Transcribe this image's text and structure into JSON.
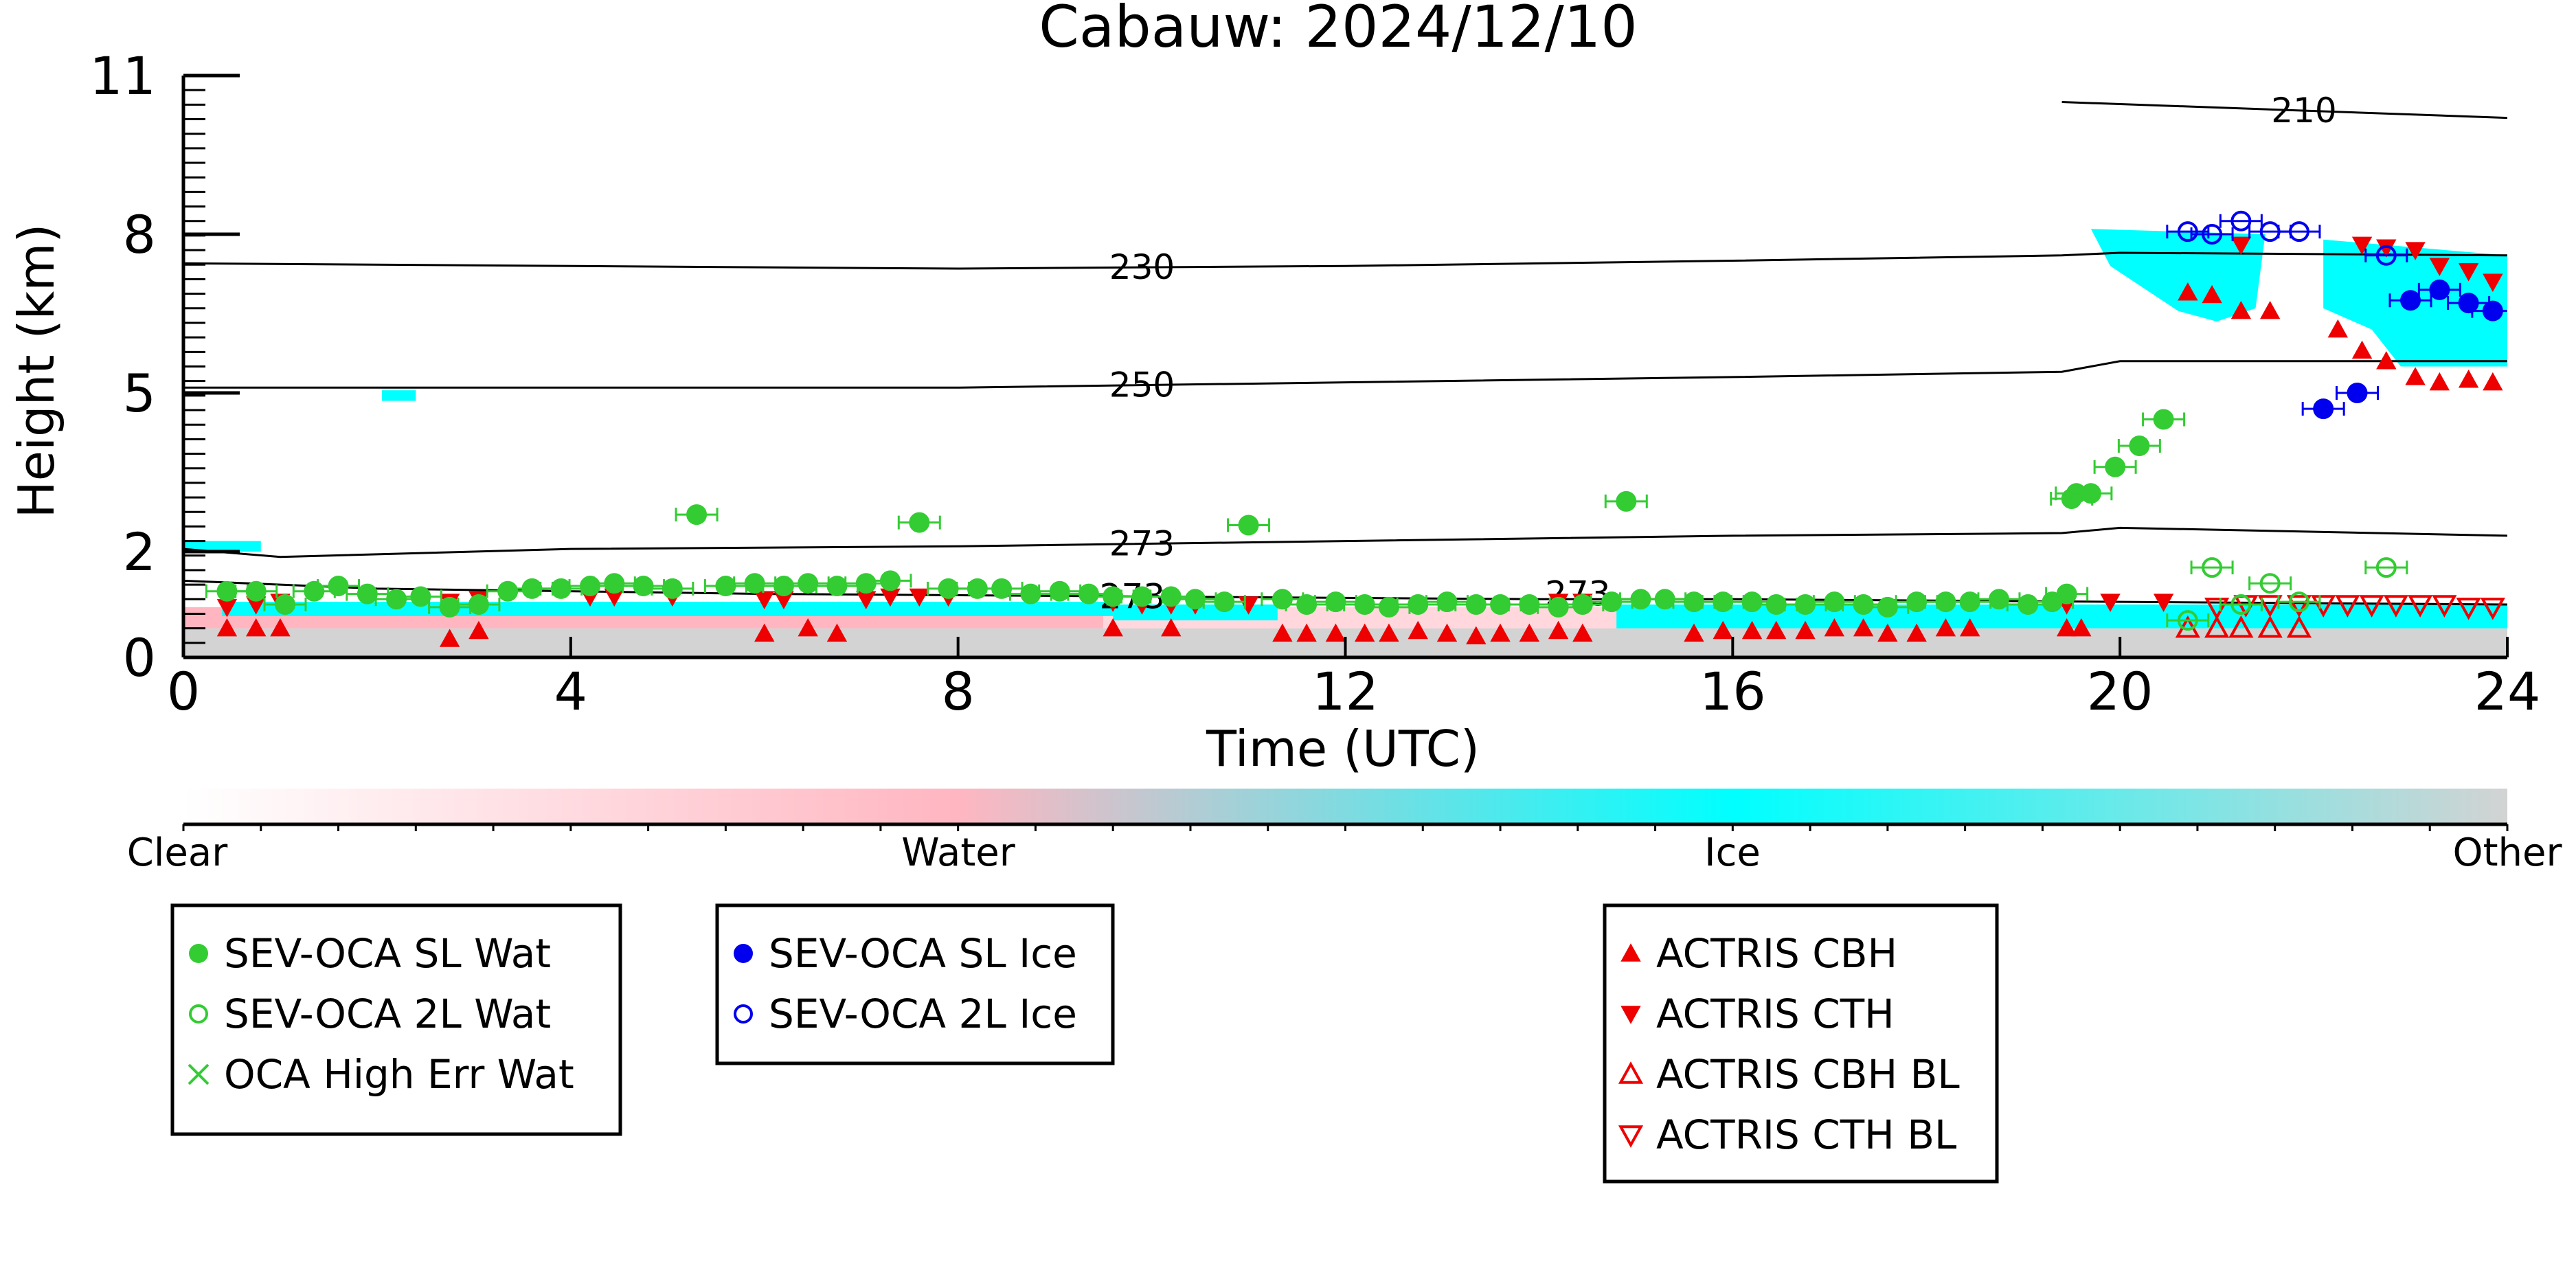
{
  "chart_data": {
    "type": "scatter",
    "title": "Cabauw: 2024/12/10",
    "xlabel": "Time (UTC)",
    "ylabel": "Height (km)",
    "xlim": [
      0,
      24
    ],
    "ylim": [
      0,
      11
    ],
    "xticks": [
      0,
      4,
      8,
      12,
      16,
      20,
      24
    ],
    "yticks": [
      0,
      2,
      5,
      8,
      11
    ],
    "colorbar": {
      "labels": [
        "Clear",
        "Water",
        "Ice",
        "Other"
      ],
      "colors": [
        "#ffffff",
        "#ffb6c1",
        "#00ffff",
        "#d3d3d3"
      ]
    },
    "isotherms": [
      {
        "label": "210",
        "x": [
          19.4,
          24
        ],
        "y": [
          10.5,
          10.2
        ]
      },
      {
        "label": "230",
        "x": [
          0,
          8,
          12,
          16,
          19.4,
          20,
          24
        ],
        "y": [
          7.45,
          7.35,
          7.4,
          7.5,
          7.6,
          7.65,
          7.6
        ]
      },
      {
        "label": "250",
        "x": [
          0,
          8,
          12,
          16,
          19.4,
          20,
          24
        ],
        "y": [
          5.1,
          5.1,
          5.2,
          5.3,
          5.4,
          5.6,
          5.6
        ]
      },
      {
        "label": "273",
        "x": [
          0,
          1,
          4,
          8,
          12,
          16,
          19.4,
          20,
          24
        ],
        "y": [
          2.05,
          1.9,
          2.05,
          2.1,
          2.2,
          2.3,
          2.35,
          2.45,
          2.3
        ]
      },
      {
        "label": "273",
        "x": [
          0,
          2,
          6,
          10,
          14,
          16,
          20,
          24
        ],
        "y": [
          1.45,
          1.3,
          1.2,
          1.15,
          1.1,
          1.1,
          1.05,
          1.0
        ]
      }
    ],
    "series": [
      {
        "name": "SEV-OCA SL Wat",
        "color": "#33cc33",
        "marker": "filled-circle",
        "x": [
          0.45,
          0.75,
          1.05,
          1.35,
          1.6,
          1.9,
          2.2,
          2.45,
          2.75,
          3.05,
          3.35,
          3.6,
          3.9,
          4.2,
          4.45,
          4.75,
          5.05,
          5.3,
          5.6,
          5.9,
          6.2,
          6.45,
          6.75,
          7.05,
          7.3,
          7.6,
          7.9,
          8.2,
          8.45,
          8.75,
          9.05,
          9.35,
          9.6,
          9.9,
          10.2,
          10.45,
          10.75,
          11.0,
          11.35,
          11.6,
          11.9,
          12.2,
          12.45,
          12.75,
          13.05,
          13.35,
          13.6,
          13.9,
          14.2,
          14.45,
          14.75,
          14.9,
          15.05,
          15.3,
          15.6,
          15.9,
          16.2,
          16.45,
          16.75,
          17.05,
          17.35,
          17.6,
          17.9,
          18.2,
          18.45,
          18.75,
          19.05,
          19.3,
          19.45,
          19.5,
          19.55,
          19.7,
          19.95,
          20.2,
          20.45
        ],
        "y": [
          1.25,
          1.25,
          1.0,
          1.25,
          1.35,
          1.2,
          1.1,
          1.15,
          0.95,
          1.0,
          1.25,
          1.3,
          1.3,
          1.35,
          1.4,
          1.35,
          1.3,
          2.7,
          1.35,
          1.4,
          1.35,
          1.4,
          1.35,
          1.4,
          1.45,
          2.55,
          1.3,
          1.3,
          1.3,
          1.2,
          1.25,
          1.2,
          1.15,
          1.15,
          1.15,
          1.1,
          1.05,
          2.5,
          1.1,
          1.0,
          1.05,
          1.0,
          0.95,
          1.0,
          1.05,
          1.0,
          1.0,
          1.0,
          0.95,
          1.0,
          1.05,
          2.95,
          1.1,
          1.1,
          1.05,
          1.05,
          1.05,
          1.0,
          1.0,
          1.05,
          1.0,
          0.95,
          1.05,
          1.05,
          1.05,
          1.1,
          1.0,
          1.05,
          1.2,
          3.0,
          3.1,
          3.1,
          3.6,
          4.0,
          4.5
        ]
      },
      {
        "name": "SEV-OCA 2L Wat",
        "color": "#33cc33",
        "marker": "open-circle",
        "x": [
          20.7,
          20.95,
          21.25,
          21.55,
          21.85,
          22.75
        ],
        "y": [
          0.7,
          1.7,
          1.0,
          1.4,
          1.05,
          1.7
        ]
      },
      {
        "name": "OCA High Err Wat",
        "color": "#33cc33",
        "marker": "x",
        "x": [],
        "y": []
      },
      {
        "name": "SEV-OCA SL Ice",
        "color": "#0000ee",
        "marker": "filled-circle",
        "x": [
          22.1,
          22.45,
          23.0,
          23.3,
          23.6,
          23.85
        ],
        "y": [
          4.7,
          5.0,
          6.75,
          6.95,
          6.7,
          6.55
        ]
      },
      {
        "name": "SEV-OCA 2L Ice",
        "color": "#0000ee",
        "marker": "open-circle",
        "x": [
          20.7,
          20.95,
          21.25,
          21.55,
          21.85,
          22.75
        ],
        "y": [
          8.05,
          8.0,
          8.25,
          8.05,
          8.05,
          7.6
        ]
      },
      {
        "name": "ACTRIS CBH",
        "color": "#ee0000",
        "marker": "filled-triangle-up",
        "x": [
          0.45,
          0.75,
          1.0,
          2.75,
          3.05,
          6.0,
          6.45,
          6.75,
          9.6,
          10.2,
          11.35,
          11.6,
          11.9,
          12.2,
          12.45,
          12.75,
          13.05,
          13.35,
          13.6,
          13.9,
          14.2,
          14.45,
          15.6,
          15.9,
          16.2,
          16.45,
          16.75,
          17.05,
          17.35,
          17.6,
          17.9,
          18.2,
          18.45,
          19.45,
          19.6,
          20.7,
          20.95,
          21.25,
          21.55,
          22.25,
          22.5,
          22.75,
          23.05,
          23.3,
          23.6,
          23.85
        ],
        "y": [
          0.55,
          0.55,
          0.55,
          0.35,
          0.5,
          0.45,
          0.55,
          0.45,
          0.55,
          0.55,
          0.45,
          0.45,
          0.45,
          0.45,
          0.45,
          0.5,
          0.45,
          0.4,
          0.45,
          0.45,
          0.5,
          0.45,
          0.45,
          0.5,
          0.5,
          0.5,
          0.5,
          0.55,
          0.55,
          0.45,
          0.45,
          0.55,
          0.55,
          0.55,
          0.55,
          6.9,
          6.85,
          6.55,
          6.55,
          6.2,
          5.8,
          5.6,
          5.3,
          5.2,
          5.25,
          5.2
        ]
      },
      {
        "name": "ACTRIS CTH",
        "color": "#ee0000",
        "marker": "filled-triangle-down",
        "x": [
          0.45,
          0.75,
          1.0,
          2.75,
          3.05,
          4.2,
          4.45,
          5.05,
          6.0,
          6.2,
          7.05,
          7.3,
          7.6,
          7.9,
          9.6,
          9.9,
          10.2,
          10.45,
          11.0,
          14.2,
          14.45,
          19.45,
          19.9,
          20.45,
          21.25,
          22.5,
          22.75,
          23.05,
          23.3,
          23.6,
          23.85
        ],
        "y": [
          0.95,
          1.0,
          1.05,
          1.05,
          1.1,
          1.15,
          1.15,
          1.15,
          1.1,
          1.1,
          1.1,
          1.15,
          1.15,
          1.15,
          1.05,
          1.0,
          1.0,
          1.0,
          1.0,
          1.05,
          1.05,
          1.0,
          1.05,
          1.05,
          7.8,
          7.8,
          7.75,
          7.7,
          7.4,
          7.3,
          7.1
        ]
      },
      {
        "name": "ACTRIS CBH BL",
        "color": "#ee0000",
        "marker": "open-triangle-up",
        "x": [
          20.7,
          21.0,
          21.25,
          21.55,
          21.85
        ],
        "y": [
          0.55,
          0.55,
          0.55,
          0.55,
          0.55
        ]
      },
      {
        "name": "ACTRIS CTH BL",
        "color": "#ee0000",
        "marker": "open-triangle-down",
        "x": [
          21.0,
          21.3,
          21.55,
          21.85,
          22.1,
          22.35,
          22.6,
          22.85,
          23.1,
          23.35,
          23.6,
          23.85
        ],
        "y": [
          0.95,
          1.0,
          1.0,
          1.0,
          1.0,
          1.0,
          1.0,
          1.0,
          1.0,
          1.0,
          0.95,
          0.95
        ]
      }
    ],
    "legend_groups": [
      [
        "SEV-OCA SL Wat",
        "SEV-OCA 2L Wat",
        "OCA High Err Wat"
      ],
      [
        "SEV-OCA SL Ice",
        "SEV-OCA 2L Ice"
      ],
      [
        "ACTRIS CBH",
        "ACTRIS CTH",
        "ACTRIS CBH BL",
        "ACTRIS CTH BL"
      ]
    ]
  }
}
